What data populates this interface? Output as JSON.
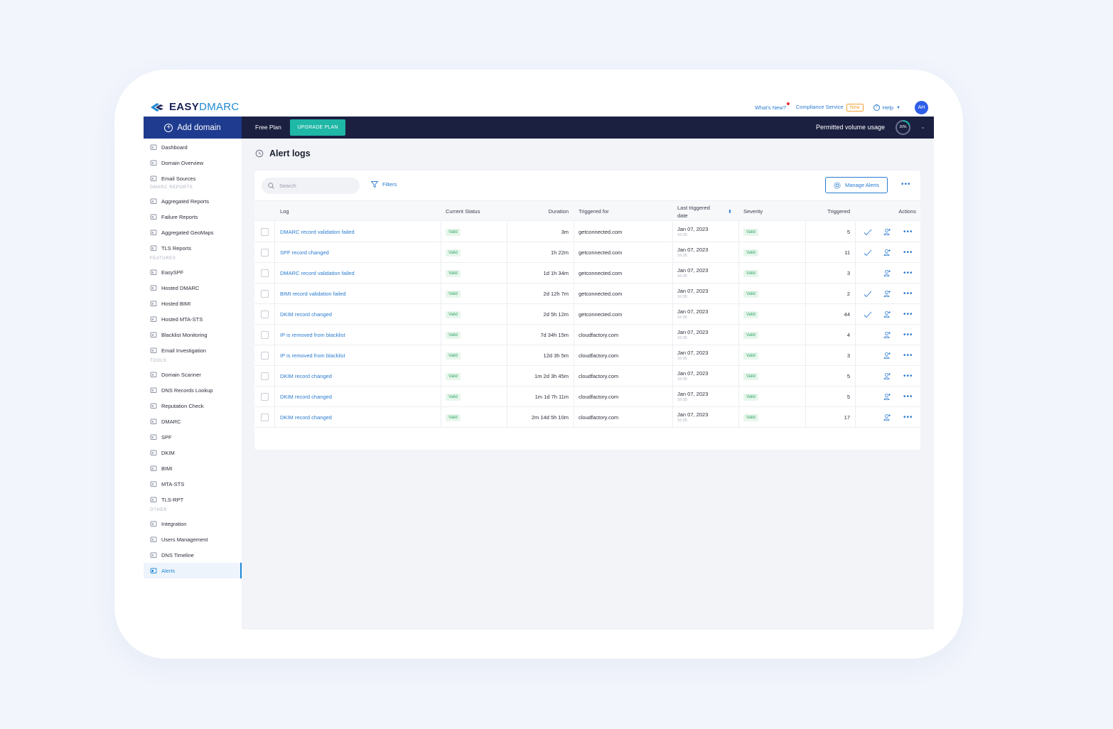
{
  "brand": {
    "name_bold": "EASY",
    "name_light": "DMARC"
  },
  "topnav": {
    "whats_new": "What's New?",
    "compliance": "Compliance Service",
    "new_badge": "New",
    "help": "Help",
    "avatar_initials": "AH"
  },
  "navbar": {
    "add_domain": "Add domain",
    "free_plan": "Free Plan",
    "upgrade": "UPGRADE PLAN",
    "permitted_label": "Permitted volume usage",
    "usage_label": "20%",
    "usage_fraction": 0.2
  },
  "sidebar": {
    "items_top": [
      "Dashboard",
      "Domain Overview",
      "Email Sources"
    ],
    "section_reports": "DMARC REPORTS",
    "items_reports": [
      "Aggregated Reports",
      "Failure Reports",
      "Aggregated GeoMaps",
      "TLS Reports"
    ],
    "section_features": "FEATURES",
    "items_features": [
      "EasySPF",
      "Hosted DMARC",
      "Hosted BIMI",
      "Hosted MTA-STS",
      "Blacklist Monitoring",
      "Email Investigation"
    ],
    "section_tools": "TOOLS",
    "items_tools": [
      "Domain Scanner",
      "DNS Records Lookup",
      "Reputation Check",
      "DMARC",
      "SPF",
      "DKIM",
      "BIMI",
      "MTA-STS",
      "TLS-RPT"
    ],
    "section_other": "OTHER",
    "items_other": [
      "Integration",
      "Users Management",
      "DNS Timeline",
      "Alerts"
    ]
  },
  "page": {
    "title": "Alert logs",
    "search_placeholder": "Search",
    "filters": "Filters",
    "manage_alerts": "Manage Alerts"
  },
  "table": {
    "headers": {
      "log": "Log",
      "status": "Current Status",
      "duration": "Duration",
      "triggered_for": "Triggered for",
      "last_triggered": "Last triggered date",
      "severity": "Severity",
      "triggered": "Triggered",
      "actions": "Actions"
    },
    "rows": [
      {
        "log": "DMARC record validation failed",
        "status": "Valid",
        "duration": "3m",
        "triggered_for": "getconnected.com",
        "date": "Jan 07, 2023",
        "time": "16:35",
        "severity": "Valid",
        "triggered": "5",
        "resolved": true
      },
      {
        "log": "SPF record changed",
        "status": "Valid",
        "duration": "1h 22m",
        "triggered_for": "getconnected.com",
        "date": "Jan 07, 2023",
        "time": "16:35",
        "severity": "Valid",
        "triggered": "11",
        "resolved": true
      },
      {
        "log": "DMARC record validation failed",
        "status": "Valid",
        "duration": "1d 1h 34m",
        "triggered_for": "getconnected.com",
        "date": "Jan 07, 2023",
        "time": "16:35",
        "severity": "Valid",
        "triggered": "3",
        "resolved": false
      },
      {
        "log": "BIMI record validation failed",
        "status": "Valid",
        "duration": "2d 12h 7m",
        "triggered_for": "getconnected.com",
        "date": "Jan 07, 2023",
        "time": "16:35",
        "severity": "Valid",
        "triggered": "2",
        "resolved": true
      },
      {
        "log": "DKIM record changed",
        "status": "Valid",
        "duration": "2d 5h 12m",
        "triggered_for": "getconnected.com",
        "date": "Jan 07, 2023",
        "time": "16:35",
        "severity": "Valid",
        "triggered": "44",
        "resolved": true
      },
      {
        "log": "IP is removed from blacklist",
        "status": "Valid",
        "duration": "7d 34h 15m",
        "triggered_for": "cloudfactory.com",
        "date": "Jan 07, 2023",
        "time": "16:35",
        "severity": "Valid",
        "triggered": "4",
        "resolved": false
      },
      {
        "log": "IP is removed from blacklist",
        "status": "Valid",
        "duration": "12d 3h 5m",
        "triggered_for": "cloudfactory.com",
        "date": "Jan 07, 2023",
        "time": "16:35",
        "severity": "Valid",
        "triggered": "3",
        "resolved": false
      },
      {
        "log": "DKIM record changed",
        "status": "Valid",
        "duration": "1m 2d 3h 45m",
        "triggered_for": "cloudfactory.com",
        "date": "Jan 07, 2023",
        "time": "16:35",
        "severity": "Valid",
        "triggered": "5",
        "resolved": false
      },
      {
        "log": "DKIM record changed",
        "status": "Valid",
        "duration": "1m 1d 7h 11m",
        "triggered_for": "cloudfactory.com",
        "date": "Jan 07, 2023",
        "time": "16:35",
        "severity": "Valid",
        "triggered": "5",
        "resolved": false
      },
      {
        "log": "DKIM record changed",
        "status": "Valid",
        "duration": "2m 14d 5h 10m",
        "triggered_for": "cloudfactory.com",
        "date": "Jan 07, 2023",
        "time": "16:35",
        "severity": "Valid",
        "triggered": "17",
        "resolved": false
      }
    ]
  },
  "colors": {
    "navbar": "#1b2040",
    "add_domain": "#1e3b8f",
    "upgrade": "#1fb7a5",
    "link": "#2a7bd0",
    "valid_bg": "#e7f6ec",
    "valid_text": "#35a86a"
  }
}
